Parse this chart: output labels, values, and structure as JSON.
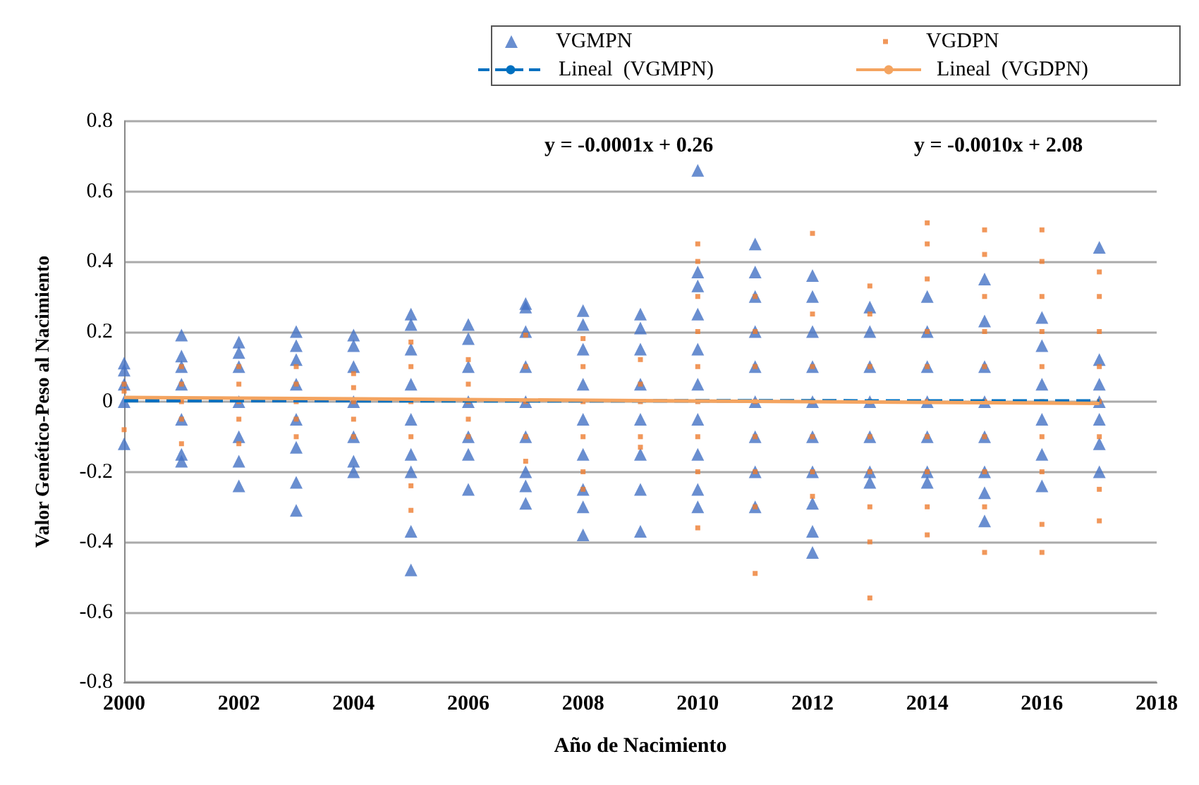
{
  "chart_data": {
    "type": "scatter",
    "xlabel": "Año de Nacimiento",
    "ylabel": "Valor Genético-Peso al Nacimiento",
    "xlim": [
      2000,
      2018
    ],
    "xticks": [
      2000,
      2002,
      2004,
      2006,
      2008,
      2010,
      2012,
      2014,
      2016,
      2018
    ],
    "ylim": [
      -0.8,
      0.8
    ],
    "yticks": [
      -0.8,
      -0.6,
      -0.4,
      -0.2,
      0,
      0.2,
      0.4,
      0.6,
      0.8
    ],
    "grid": "y",
    "legend": "top",
    "annotations": [
      "y = -0.0001x + 0.26",
      "y = -0.0010x + 2.08"
    ],
    "series": [
      {
        "name": "VGMPN",
        "marker": "triangle",
        "color": "#4472c4",
        "x": [
          2000,
          2000,
          2000,
          2000,
          2000,
          2001,
          2001,
          2001,
          2001,
          2001,
          2001,
          2001,
          2002,
          2002,
          2002,
          2002,
          2002,
          2002,
          2002,
          2003,
          2003,
          2003,
          2003,
          2003,
          2003,
          2003,
          2003,
          2004,
          2004,
          2004,
          2004,
          2004,
          2004,
          2004,
          2005,
          2005,
          2005,
          2005,
          2005,
          2005,
          2005,
          2005,
          2005,
          2006,
          2006,
          2006,
          2006,
          2006,
          2006,
          2006,
          2007,
          2007,
          2007,
          2007,
          2007,
          2007,
          2007,
          2007,
          2007,
          2008,
          2008,
          2008,
          2008,
          2008,
          2008,
          2008,
          2008,
          2008,
          2009,
          2009,
          2009,
          2009,
          2009,
          2009,
          2009,
          2009,
          2010,
          2010,
          2010,
          2010,
          2010,
          2010,
          2010,
          2010,
          2010,
          2010,
          2011,
          2011,
          2011,
          2011,
          2011,
          2011,
          2011,
          2011,
          2011,
          2012,
          2012,
          2012,
          2012,
          2012,
          2012,
          2012,
          2012,
          2012,
          2012,
          2013,
          2013,
          2013,
          2013,
          2013,
          2013,
          2013,
          2014,
          2014,
          2014,
          2014,
          2014,
          2014,
          2014,
          2015,
          2015,
          2015,
          2015,
          2015,
          2015,
          2015,
          2015,
          2016,
          2016,
          2016,
          2016,
          2016,
          2016,
          2017,
          2017,
          2017,
          2017,
          2017,
          2017,
          2017
        ],
        "values": [
          0.11,
          0.09,
          0.05,
          0,
          -0.12,
          0.19,
          0.13,
          0.1,
          0.05,
          -0.05,
          -0.15,
          -0.17,
          0.17,
          0.14,
          0.1,
          0,
          -0.1,
          -0.17,
          -0.24,
          0.2,
          0.16,
          0.12,
          0.05,
          -0.05,
          -0.13,
          -0.23,
          -0.31,
          0.19,
          0.16,
          0.1,
          0,
          -0.1,
          -0.17,
          -0.2,
          0.25,
          0.22,
          0.15,
          0.05,
          -0.05,
          -0.15,
          -0.2,
          -0.37,
          -0.48,
          0.22,
          0.18,
          0.1,
          0,
          -0.1,
          -0.15,
          -0.25,
          0.28,
          0.27,
          0.2,
          0.1,
          0,
          -0.1,
          -0.2,
          -0.24,
          -0.29,
          0.26,
          0.22,
          0.15,
          0.05,
          -0.05,
          -0.15,
          -0.25,
          -0.3,
          -0.38,
          0.25,
          0.21,
          0.15,
          0.05,
          -0.05,
          -0.15,
          -0.25,
          -0.37,
          0.66,
          0.37,
          0.33,
          0.25,
          0.15,
          0.05,
          -0.05,
          -0.15,
          -0.25,
          -0.3,
          0.45,
          0.37,
          0.3,
          0.2,
          0.1,
          0,
          -0.1,
          -0.2,
          -0.3,
          0.36,
          0.3,
          0.2,
          0.1,
          0,
          -0.1,
          -0.2,
          -0.29,
          -0.37,
          -0.43,
          0.27,
          0.2,
          0.1,
          0,
          -0.1,
          -0.2,
          -0.23,
          0.3,
          0.2,
          0.1,
          0,
          -0.1,
          -0.2,
          -0.23,
          0.35,
          0.23,
          0.1,
          0,
          -0.1,
          -0.2,
          -0.26,
          -0.34,
          0.24,
          0.16,
          0.05,
          -0.05,
          -0.15,
          -0.24,
          0.44,
          0.12,
          0.05,
          0,
          -0.05,
          -0.12,
          -0.2
        ]
      },
      {
        "name": "VGDPN",
        "marker": "square",
        "color": "#ed7d31",
        "x": [
          2000,
          2000,
          2000,
          2001,
          2001,
          2001,
          2001,
          2001,
          2002,
          2002,
          2002,
          2002,
          2002,
          2003,
          2003,
          2003,
          2003,
          2003,
          2004,
          2004,
          2004,
          2004,
          2004,
          2005,
          2005,
          2005,
          2005,
          2005,
          2005,
          2006,
          2006,
          2006,
          2006,
          2006,
          2007,
          2007,
          2007,
          2007,
          2007,
          2008,
          2008,
          2008,
          2008,
          2008,
          2008,
          2009,
          2009,
          2009,
          2009,
          2009,
          2010,
          2010,
          2010,
          2010,
          2010,
          2010,
          2010,
          2010,
          2010,
          2011,
          2011,
          2011,
          2011,
          2011,
          2011,
          2011,
          2011,
          2012,
          2012,
          2012,
          2012,
          2012,
          2012,
          2012,
          2013,
          2013,
          2013,
          2013,
          2013,
          2013,
          2013,
          2013,
          2013,
          2014,
          2014,
          2014,
          2014,
          2014,
          2014,
          2014,
          2014,
          2014,
          2014,
          2015,
          2015,
          2015,
          2015,
          2015,
          2015,
          2015,
          2015,
          2015,
          2015,
          2016,
          2016,
          2016,
          2016,
          2016,
          2016,
          2016,
          2016,
          2016,
          2016,
          2017,
          2017,
          2017,
          2017,
          2017,
          2017,
          2017,
          2017
        ],
        "values": [
          0.05,
          0.03,
          -0.08,
          0.1,
          0.05,
          0,
          -0.05,
          -0.12,
          0.1,
          0.05,
          0,
          -0.05,
          -0.12,
          0.1,
          0.05,
          0,
          -0.05,
          -0.1,
          0.08,
          0.04,
          0,
          -0.05,
          -0.1,
          0.17,
          0.1,
          0,
          -0.1,
          -0.24,
          -0.31,
          0.12,
          0.05,
          0,
          -0.05,
          -0.1,
          0.19,
          0.1,
          0,
          -0.1,
          -0.17,
          0.18,
          0.1,
          0,
          -0.1,
          -0.2,
          -0.25,
          0.12,
          0.05,
          0,
          -0.1,
          -0.13,
          0.45,
          0.4,
          0.3,
          0.2,
          0.1,
          0,
          -0.1,
          -0.2,
          -0.36,
          0.3,
          0.2,
          0.1,
          0,
          -0.1,
          -0.2,
          -0.3,
          -0.49,
          0.48,
          0.25,
          0.1,
          0,
          -0.1,
          -0.2,
          -0.27,
          0.33,
          0.25,
          0.1,
          0,
          -0.1,
          -0.2,
          -0.3,
          -0.4,
          -0.56,
          0.51,
          0.45,
          0.35,
          0.2,
          0.1,
          0,
          -0.1,
          -0.2,
          -0.3,
          -0.38,
          0.49,
          0.42,
          0.3,
          0.2,
          0.1,
          0,
          -0.1,
          -0.2,
          -0.3,
          -0.43,
          0.49,
          0.4,
          0.3,
          0.2,
          0.1,
          0,
          -0.1,
          -0.2,
          -0.35,
          -0.43,
          0.37,
          0.3,
          0.2,
          0.1,
          0,
          -0.1,
          -0.25,
          -0.34
        ]
      },
      {
        "name": "Lineal  (VGMPN)",
        "type": "line",
        "marker": "none",
        "line_style": "dashed",
        "color": "#0070c0",
        "x": [
          2000,
          2017
        ],
        "values": [
          0.003,
          0.002
        ]
      },
      {
        "name": "Lineal  (VGDPN)",
        "type": "line",
        "marker": "none",
        "line_style": "solid",
        "color": "#f4a460",
        "x": [
          2000,
          2017
        ],
        "values": [
          0.012,
          -0.005
        ]
      }
    ]
  }
}
